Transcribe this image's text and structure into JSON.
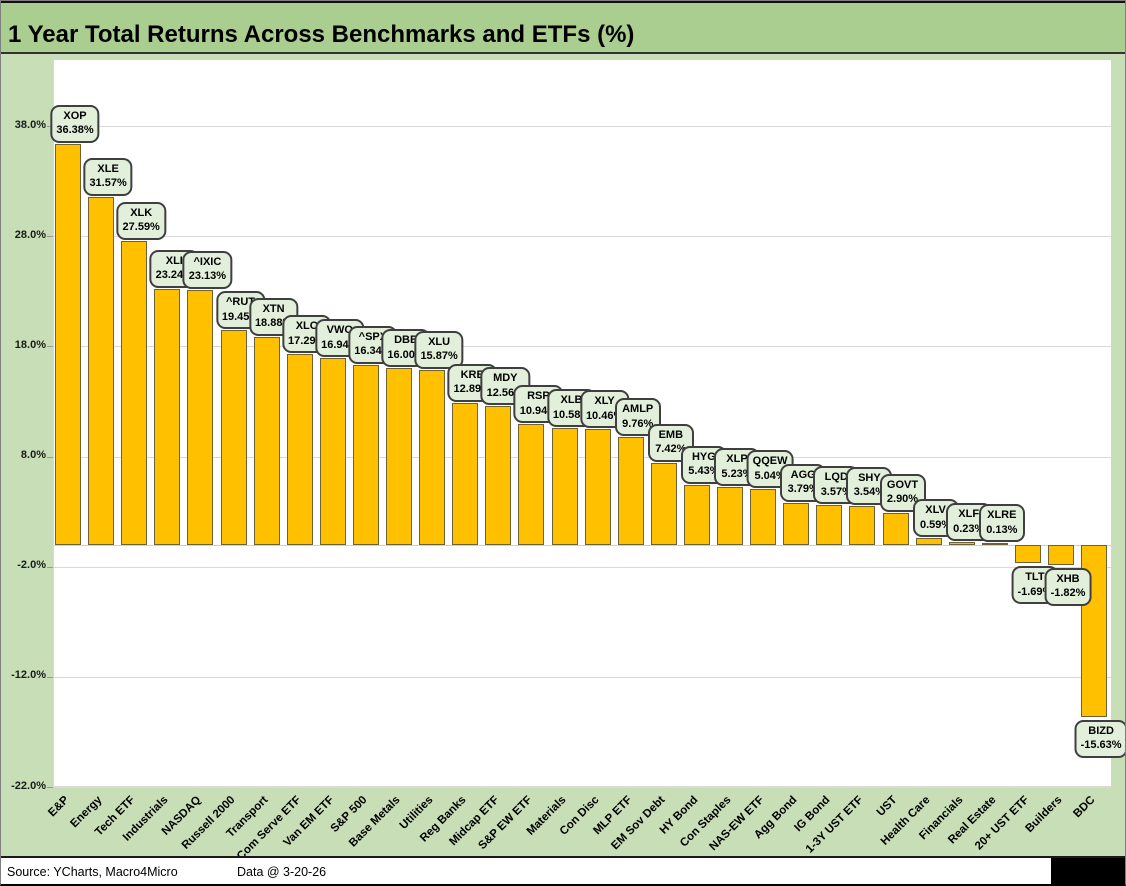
{
  "title": "1 Year Total Returns Across Benchmarks and ETFs (%)",
  "footer": {
    "source": "Source: YCharts, Macro4Micro",
    "date_note": "Data @ 3-20-26"
  },
  "colors": {
    "page_bg": "#C7DEB6",
    "title_bg": "#A9CE90",
    "bar_fill": "#FFC000",
    "bar_border": "#6F6136",
    "label_box_fill": "#E2EFDA",
    "label_box_border": "#3F3F3F",
    "gridline": "#D9D9D9"
  },
  "chart_data": {
    "type": "bar",
    "title": "1 Year Total Returns Across Benchmarks and ETFs (%)",
    "xlabel": "",
    "ylabel": "",
    "ylim": [
      -22,
      44
    ],
    "grid": true,
    "legend": false,
    "yticks": [
      {
        "value": 38.0,
        "label": "38.0%"
      },
      {
        "value": 28.0,
        "label": "28.0%"
      },
      {
        "value": 18.0,
        "label": "18.0%"
      },
      {
        "value": 8.0,
        "label": "8.0%"
      },
      {
        "value": -2.0,
        "label": "-2.0%"
      },
      {
        "value": -12.0,
        "label": "-12.0%"
      },
      {
        "value": -22.0,
        "label": "-22.0%"
      }
    ],
    "points": [
      {
        "category": "E&P",
        "ticker": "XOP",
        "value": 36.38,
        "label": "36.38%"
      },
      {
        "category": "Energy",
        "ticker": "XLE",
        "value": 31.57,
        "label": "31.57%"
      },
      {
        "category": "Tech ETF",
        "ticker": "XLK",
        "value": 27.59,
        "label": "27.59%"
      },
      {
        "category": "Industrials",
        "ticker": "XLI",
        "value": 23.24,
        "label": "23.24%"
      },
      {
        "category": "NASDAQ",
        "ticker": "^IXIC",
        "value": 23.13,
        "label": "23.13%"
      },
      {
        "category": "Russell 2000",
        "ticker": "^RUT",
        "value": 19.45,
        "label": "19.45%"
      },
      {
        "category": "Transport",
        "ticker": "XTN",
        "value": 18.88,
        "label": "18.88%"
      },
      {
        "category": "Com Serve ETF",
        "ticker": "XLC",
        "value": 17.29,
        "label": "17.29%"
      },
      {
        "category": "Van EM ETF",
        "ticker": "VWO",
        "value": 16.94,
        "label": "16.94%"
      },
      {
        "category": "S&P 500",
        "ticker": "^SPX",
        "value": 16.34,
        "label": "16.34%"
      },
      {
        "category": "Base Metals",
        "ticker": "DBB",
        "value": 16.0,
        "label": "16.00%"
      },
      {
        "category": "Utilities",
        "ticker": "XLU",
        "value": 15.87,
        "label": "15.87%"
      },
      {
        "category": "Reg Banks",
        "ticker": "KRE",
        "value": 12.89,
        "label": "12.89%"
      },
      {
        "category": "Midcap ETF",
        "ticker": "MDY",
        "value": 12.56,
        "label": "12.56%"
      },
      {
        "category": "S&P EW ETF",
        "ticker": "RSP",
        "value": 10.94,
        "label": "10.94%"
      },
      {
        "category": "Materials",
        "ticker": "XLB",
        "value": 10.58,
        "label": "10.58%"
      },
      {
        "category": "Con Disc",
        "ticker": "XLY",
        "value": 10.46,
        "label": "10.46%"
      },
      {
        "category": "MLP ETF",
        "ticker": "AMLP",
        "value": 9.76,
        "label": "9.76%"
      },
      {
        "category": "EM Sov Debt",
        "ticker": "EMB",
        "value": 7.42,
        "label": "7.42%"
      },
      {
        "category": "HY Bond",
        "ticker": "HYG",
        "value": 5.43,
        "label": "5.43%"
      },
      {
        "category": "Con Staples",
        "ticker": "XLP",
        "value": 5.23,
        "label": "5.23%"
      },
      {
        "category": "NAS-EW ETF",
        "ticker": "QQEW",
        "value": 5.04,
        "label": "5.04%"
      },
      {
        "category": "Agg Bond",
        "ticker": "AGG",
        "value": 3.79,
        "label": "3.79%"
      },
      {
        "category": "IG Bond",
        "ticker": "LQD",
        "value": 3.57,
        "label": "3.57%"
      },
      {
        "category": "1-3Y UST ETF",
        "ticker": "SHY",
        "value": 3.54,
        "label": "3.54%"
      },
      {
        "category": "UST",
        "ticker": "GOVT",
        "value": 2.9,
        "label": "2.90%"
      },
      {
        "category": "Health Care",
        "ticker": "XLV",
        "value": 0.59,
        "label": "0.59%"
      },
      {
        "category": "Financials",
        "ticker": "XLF",
        "value": 0.23,
        "label": "0.23%"
      },
      {
        "category": "Real Estate",
        "ticker": "XLRE",
        "value": 0.13,
        "label": "0.13%"
      },
      {
        "category": "20+ UST ETF",
        "ticker": "TLT",
        "value": -1.69,
        "label": "-1.69%"
      },
      {
        "category": "Builders",
        "ticker": "XHB",
        "value": -1.82,
        "label": "-1.82%"
      },
      {
        "category": "BDC",
        "ticker": "BIZD",
        "value": -15.63,
        "label": "-15.63%"
      }
    ]
  }
}
